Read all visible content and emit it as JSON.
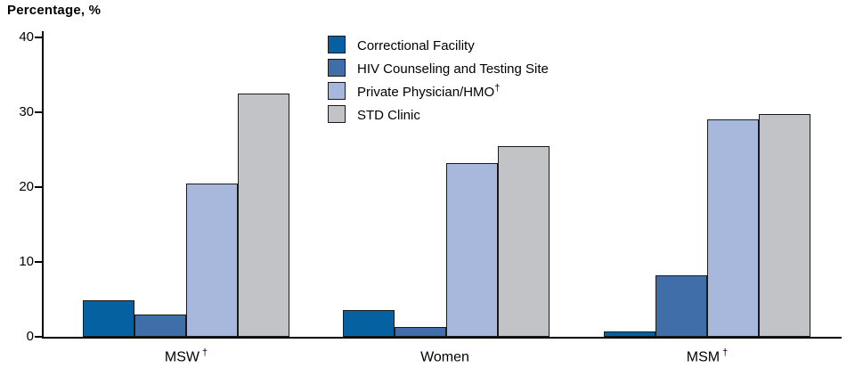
{
  "chart_data": {
    "type": "bar",
    "title": "Percentage, %",
    "ylabel": "Percentage, %",
    "xlabel": "",
    "ylim": [
      0,
      40
    ],
    "yticks": [
      0,
      10,
      20,
      30,
      40
    ],
    "grid": false,
    "legend_position": "top-center",
    "categories": [
      {
        "label": "MSW",
        "sup": "†"
      },
      {
        "label": "Women",
        "sup": ""
      },
      {
        "label": "MSM",
        "sup": "†"
      }
    ],
    "series": [
      {
        "name": "Correctional Facility",
        "sup": "",
        "color": "#0561a2",
        "values": [
          4.9,
          3.6,
          0.7
        ]
      },
      {
        "name": "HIV Counseling and Testing Site",
        "sup": "",
        "color": "#3f6ea8",
        "values": [
          3.0,
          1.3,
          8.2
        ]
      },
      {
        "name": "Private Physician/HMO",
        "sup": "†",
        "color": "#a7b8dc",
        "values": [
          20.5,
          23.2,
          29.0
        ]
      },
      {
        "name": "STD Clinic",
        "sup": "",
        "color": "#c2c3c7",
        "values": [
          32.5,
          25.5,
          29.8
        ]
      }
    ]
  }
}
